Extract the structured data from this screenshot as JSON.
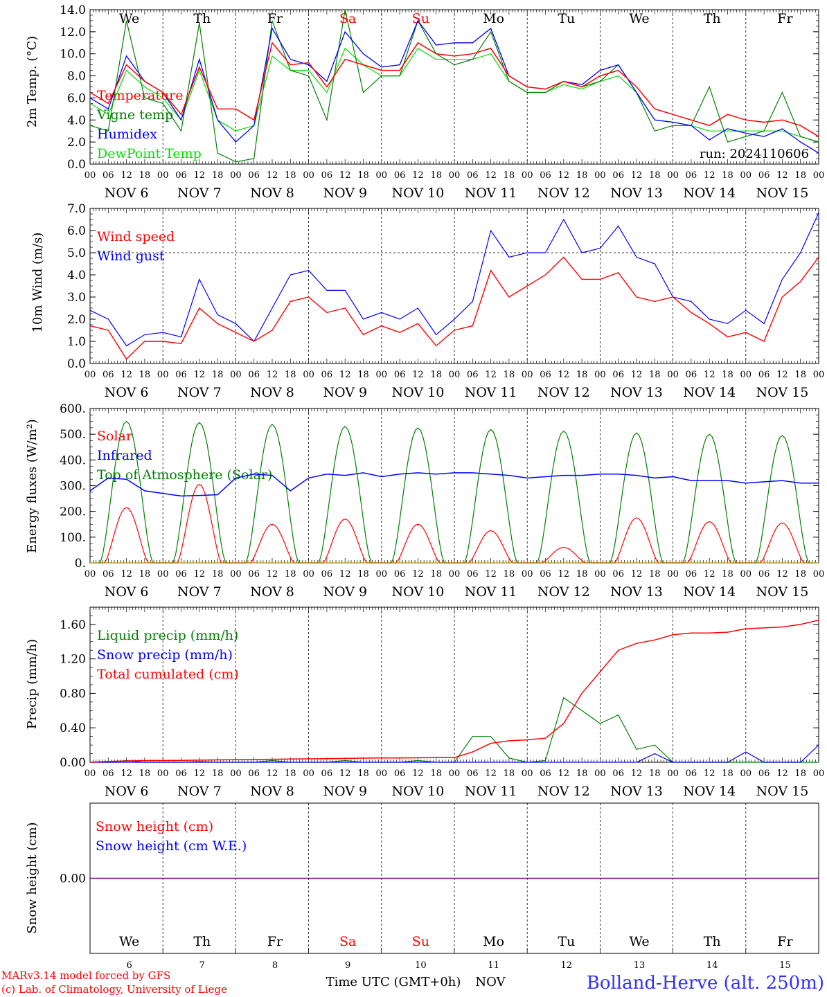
{
  "days": [
    "We",
    "Th",
    "Fr",
    "Sa",
    "Su",
    "Mo",
    "Tu",
    "We",
    "Th",
    "Fr"
  ],
  "weekend_days": [
    "Sa",
    "Su"
  ],
  "dates": [
    "NOV  6",
    "NOV  7",
    "NOV  8",
    "NOV  9",
    "NOV 10",
    "NOV 11",
    "NOV 12",
    "NOV 13",
    "NOV 14",
    "NOV 15"
  ],
  "day_numbers": [
    "6",
    "7",
    "8",
    "9",
    "10",
    "11",
    "12",
    "13",
    "14",
    "15"
  ],
  "hour_labels": [
    "00",
    "06",
    "12",
    "18"
  ],
  "final_hour_label": "00",
  "colors": {
    "red": "#ff0000",
    "green": "#007f00",
    "blue": "#0000ff",
    "lightgreen": "#00e000",
    "purple": "#7f007f"
  },
  "footer": {
    "model_line1": "MARv3.14 model forced by GFS",
    "model_line2": "(c) Lab. of Climatology, University of Liege",
    "time_label": "Time UTC (GMT+0h)",
    "month": "NOV",
    "station": "Bolland-Herve (alt. 250m)"
  },
  "chart_data": [
    {
      "type": "line",
      "ylabel": "2m Temp. (°C)",
      "ylim": [
        0,
        14
      ],
      "yticks": [
        0,
        2,
        4,
        6,
        8,
        10,
        12,
        14
      ],
      "ytick_labels": [
        "0.0",
        "2.0",
        "4.0",
        "6.0",
        "8.0",
        "10.0",
        "12.0",
        "14.0"
      ],
      "grid": "vertical day separators",
      "legend_placement": "top-left",
      "annotation": "run: 2024110606",
      "x": [
        "Nov 6 00",
        "Nov 6 06",
        "Nov 6 12",
        "Nov 6 18",
        "Nov 7 00",
        "Nov 7 06",
        "Nov 7 12",
        "Nov 7 18",
        "Nov 8 00",
        "Nov 8 06",
        "Nov 8 12",
        "Nov 8 18",
        "Nov 9 00",
        "Nov 9 06",
        "Nov 9 12",
        "Nov 9 18",
        "Nov 10 00",
        "Nov 10 06",
        "Nov 10 12",
        "Nov 10 18",
        "Nov 11 00",
        "Nov 11 06",
        "Nov 11 12",
        "Nov 11 18",
        "Nov 12 00",
        "Nov 12 06",
        "Nov 12 12",
        "Nov 12 18",
        "Nov 13 00",
        "Nov 13 06",
        "Nov 13 12",
        "Nov 13 18",
        "Nov 14 00",
        "Nov 14 06",
        "Nov 14 12",
        "Nov 14 18",
        "Nov 15 00",
        "Nov 15 06",
        "Nov 15 12",
        "Nov 15 18",
        "Nov 16 00"
      ],
      "series": [
        {
          "name": "Temperature",
          "color": "red",
          "values": [
            6.5,
            5.5,
            9.0,
            7.5,
            6.5,
            4.5,
            8.8,
            5.0,
            5.0,
            4.0,
            11.0,
            9.0,
            9.2,
            7.0,
            9.5,
            9.0,
            8.5,
            8.5,
            11.0,
            10.0,
            9.8,
            10.0,
            10.5,
            8.0,
            7.0,
            6.8,
            7.5,
            7.0,
            8.0,
            8.5,
            7.0,
            5.0,
            4.5,
            4.0,
            3.5,
            4.5,
            4.0,
            3.8,
            4.0,
            3.5,
            2.5
          ]
        },
        {
          "name": "Vigne temp",
          "color": "green",
          "values": [
            3.5,
            3.0,
            13.0,
            6.0,
            5.5,
            3.0,
            12.8,
            1.0,
            0.2,
            0.5,
            13.0,
            8.5,
            8.0,
            4.0,
            14.0,
            6.5,
            8.0,
            8.0,
            13.0,
            10.0,
            9.0,
            9.5,
            12.0,
            7.5,
            6.5,
            6.5,
            7.5,
            7.0,
            7.5,
            9.0,
            6.5,
            3.0,
            3.5,
            3.5,
            7.0,
            2.0,
            2.5,
            3.0,
            6.5,
            2.5,
            2.0
          ]
        },
        {
          "name": "Humidex",
          "color": "blue",
          "values": [
            6.0,
            5.0,
            9.8,
            7.5,
            6.5,
            4.0,
            9.5,
            4.0,
            2.0,
            3.5,
            12.3,
            9.5,
            9.0,
            7.5,
            12.0,
            10.0,
            8.8,
            9.0,
            13.0,
            10.8,
            11.0,
            11.0,
            12.3,
            8.0,
            7.0,
            6.8,
            7.5,
            7.2,
            8.5,
            9.0,
            6.5,
            4.0,
            3.8,
            3.5,
            2.2,
            3.2,
            2.8,
            2.5,
            3.2,
            2.0,
            1.0
          ]
        },
        {
          "name": "DewPoint Temp",
          "color": "lightgreen",
          "values": [
            5.5,
            4.5,
            8.5,
            7.0,
            6.0,
            4.0,
            8.5,
            4.0,
            3.0,
            3.5,
            9.8,
            8.5,
            8.5,
            6.5,
            10.5,
            9.0,
            8.0,
            8.0,
            10.5,
            9.5,
            9.5,
            9.5,
            10.0,
            7.5,
            6.5,
            6.5,
            7.2,
            6.8,
            7.5,
            8.0,
            6.5,
            4.0,
            3.8,
            3.5,
            3.0,
            3.0,
            3.0,
            3.0,
            3.0,
            2.5,
            2.0
          ]
        }
      ]
    },
    {
      "type": "line",
      "ylabel": "10m Wind (m/s)",
      "ylim": [
        0,
        7
      ],
      "yticks": [
        0,
        1,
        2,
        3,
        4,
        5,
        6,
        7
      ],
      "ytick_labels": [
        "0.0",
        "1.0",
        "2.0",
        "3.0",
        "4.0",
        "5.0",
        "6.0",
        "7.0"
      ],
      "reference_line": 5.0,
      "grid": "vertical day separators",
      "legend_placement": "top-left",
      "x": [
        "Nov 6 00",
        "Nov 6 06",
        "Nov 6 12",
        "Nov 6 18",
        "Nov 7 00",
        "Nov 7 06",
        "Nov 7 12",
        "Nov 7 18",
        "Nov 8 00",
        "Nov 8 06",
        "Nov 8 12",
        "Nov 8 18",
        "Nov 9 00",
        "Nov 9 06",
        "Nov 9 12",
        "Nov 9 18",
        "Nov 10 00",
        "Nov 10 06",
        "Nov 10 12",
        "Nov 10 18",
        "Nov 11 00",
        "Nov 11 06",
        "Nov 11 12",
        "Nov 11 18",
        "Nov 12 00",
        "Nov 12 06",
        "Nov 12 12",
        "Nov 12 18",
        "Nov 13 00",
        "Nov 13 06",
        "Nov 13 12",
        "Nov 13 18",
        "Nov 14 00",
        "Nov 14 06",
        "Nov 14 12",
        "Nov 14 18",
        "Nov 15 00",
        "Nov 15 06",
        "Nov 15 12",
        "Nov 15 18",
        "Nov 16 00"
      ],
      "series": [
        {
          "name": "Wind speed",
          "color": "red",
          "values": [
            1.7,
            1.5,
            0.2,
            1.0,
            1.0,
            0.9,
            2.5,
            1.8,
            1.4,
            1.0,
            1.5,
            2.8,
            3.0,
            2.3,
            2.5,
            1.3,
            1.7,
            1.4,
            1.8,
            0.8,
            1.5,
            1.7,
            4.2,
            3.0,
            3.5,
            4.0,
            4.8,
            3.8,
            3.8,
            4.1,
            3.0,
            2.8,
            3.0,
            2.3,
            1.8,
            1.2,
            1.4,
            1.0,
            3.0,
            3.7,
            4.8
          ]
        },
        {
          "name": "Wind gust",
          "color": "blue",
          "values": [
            2.4,
            2.0,
            0.8,
            1.3,
            1.4,
            1.2,
            3.8,
            2.2,
            1.8,
            1.0,
            2.5,
            4.0,
            4.2,
            3.3,
            3.3,
            2.0,
            2.3,
            2.0,
            2.5,
            1.3,
            2.0,
            2.8,
            6.0,
            4.8,
            5.0,
            5.0,
            6.5,
            5.0,
            5.2,
            6.2,
            4.8,
            4.5,
            3.0,
            2.8,
            2.0,
            1.8,
            2.4,
            1.8,
            3.8,
            5.0,
            6.8
          ]
        }
      ]
    },
    {
      "type": "line",
      "ylabel": "Energy fluxes (W/m²)",
      "ylim": [
        0,
        600
      ],
      "yticks": [
        0,
        100,
        200,
        300,
        400,
        500,
        600
      ],
      "ytick_labels": [
        "0.",
        "100.",
        "200.",
        "300.",
        "400.",
        "500.",
        "600."
      ],
      "grid": "vertical day separators",
      "legend_placement": "top-left",
      "daily_peaks": {
        "Solar": [
          215,
          305,
          150,
          170,
          150,
          125,
          60,
          175,
          160,
          155
        ],
        "Top of Atmosphere (Solar)": [
          550,
          545,
          538,
          530,
          525,
          518,
          512,
          505,
          500,
          495
        ]
      },
      "series": [
        {
          "name": "Solar",
          "color": "red",
          "description_values": "zero at night, peaks near 12 UTC"
        },
        {
          "name": "Infrared",
          "color": "blue",
          "values": [
            280,
            330,
            325,
            280,
            270,
            260,
            262,
            265,
            330,
            345,
            340,
            280,
            330,
            345,
            340,
            350,
            335,
            345,
            350,
            345,
            350,
            350,
            345,
            340,
            330,
            335,
            340,
            340,
            345,
            345,
            340,
            330,
            335,
            320,
            320,
            320,
            310,
            315,
            320,
            310,
            310
          ]
        },
        {
          "name": "Top of Atmosphere (Solar)",
          "color": "green",
          "description_values": "zero at night, daily bell peaks"
        }
      ]
    },
    {
      "type": "line",
      "ylabel": "Precip (mm/h)",
      "ylim": [
        0,
        1.8
      ],
      "yticks": [
        0,
        0.4,
        0.8,
        1.2,
        1.6
      ],
      "ytick_labels": [
        "0.00",
        "0.40",
        "0.80",
        "1.20",
        "1.60"
      ],
      "grid": "vertical day separators",
      "legend_placement": "top-left",
      "x": [
        "Nov 6 00",
        "Nov 6 06",
        "Nov 6 12",
        "Nov 6 18",
        "Nov 7 00",
        "Nov 7 06",
        "Nov 7 12",
        "Nov 7 18",
        "Nov 8 00",
        "Nov 8 06",
        "Nov 8 12",
        "Nov 8 18",
        "Nov 9 00",
        "Nov 9 06",
        "Nov 9 12",
        "Nov 9 18",
        "Nov 10 00",
        "Nov 10 06",
        "Nov 10 12",
        "Nov 10 18",
        "Nov 11 00",
        "Nov 11 06",
        "Nov 11 12",
        "Nov 11 18",
        "Nov 12 00",
        "Nov 12 06",
        "Nov 12 12",
        "Nov 12 18",
        "Nov 13 00",
        "Nov 13 06",
        "Nov 13 12",
        "Nov 13 18",
        "Nov 14 00",
        "Nov 14 06",
        "Nov 14 12",
        "Nov 14 18",
        "Nov 15 00",
        "Nov 15 06",
        "Nov 15 12",
        "Nov 15 18",
        "Nov 16 00"
      ],
      "series": [
        {
          "name": "Liquid precip (mm/h)",
          "color": "green",
          "values": [
            0,
            0,
            0.02,
            0,
            0,
            0,
            0.01,
            0,
            0,
            0,
            0.02,
            0,
            0,
            0,
            0.02,
            0,
            0,
            0,
            0.02,
            0,
            0,
            0.3,
            0.3,
            0.05,
            0,
            0.02,
            0.75,
            0.6,
            0.45,
            0.55,
            0.15,
            0.2,
            0,
            0,
            0,
            0,
            0,
            0,
            0,
            0,
            0
          ]
        },
        {
          "name": "Snow precip (mm/h)",
          "color": "blue",
          "values": [
            0,
            0,
            0,
            0,
            0,
            0,
            0,
            0,
            0,
            0,
            0,
            0,
            0,
            0,
            0,
            0,
            0,
            0,
            0,
            0,
            0,
            0,
            0,
            0,
            0,
            0,
            0,
            0,
            0,
            0,
            0,
            0.1,
            0,
            0,
            0,
            0,
            0.12,
            0,
            0,
            0,
            0.2
          ]
        },
        {
          "name": "Total cumulated (cm)",
          "color": "red",
          "values": [
            0.0,
            0.01,
            0.015,
            0.02,
            0.02,
            0.022,
            0.025,
            0.028,
            0.03,
            0.032,
            0.035,
            0.038,
            0.04,
            0.042,
            0.045,
            0.048,
            0.05,
            0.05,
            0.052,
            0.055,
            0.055,
            0.12,
            0.22,
            0.25,
            0.26,
            0.28,
            0.45,
            0.8,
            1.05,
            1.3,
            1.38,
            1.42,
            1.48,
            1.5,
            1.5,
            1.51,
            1.55,
            1.56,
            1.57,
            1.6,
            1.65
          ]
        }
      ]
    },
    {
      "type": "line",
      "ylabel": "Snow height (cm)",
      "yticks": [
        0
      ],
      "ytick_labels": [
        "0.00"
      ],
      "grid": "vertical day separators",
      "legend_placement": "top-left",
      "series": [
        {
          "name": "Snow height (cm)",
          "color": "red",
          "values": [
            0,
            0
          ]
        },
        {
          "name": "Snow height (cm W.E.)",
          "color": "blue",
          "values": [
            0,
            0
          ]
        }
      ]
    }
  ]
}
